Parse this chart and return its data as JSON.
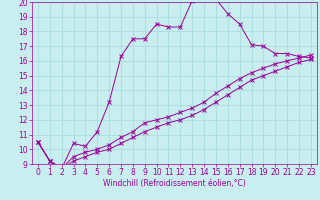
{
  "xlabel": "Windchill (Refroidissement éolien,°C)",
  "ylabel": "",
  "background_color": "#c8eef0",
  "grid_color": "#aadddd",
  "line_color": "#990099",
  "xlim": [
    -0.5,
    23.5
  ],
  "ylim": [
    9,
    20
  ],
  "xticks": [
    0,
    1,
    2,
    3,
    4,
    5,
    6,
    7,
    8,
    9,
    10,
    11,
    12,
    13,
    14,
    15,
    16,
    17,
    18,
    19,
    20,
    21,
    22,
    23
  ],
  "yticks": [
    9,
    10,
    11,
    12,
    13,
    14,
    15,
    16,
    17,
    18,
    19,
    20
  ],
  "curve1_x": [
    0,
    1,
    2,
    3,
    4,
    5,
    6,
    7,
    8,
    9,
    10,
    11,
    12,
    13,
    14,
    15,
    16,
    17,
    18,
    19,
    20,
    21,
    22,
    23
  ],
  "curve1_y": [
    10.5,
    9.2,
    8.7,
    10.4,
    10.2,
    11.2,
    13.2,
    16.3,
    17.5,
    17.5,
    18.5,
    18.3,
    18.3,
    20.1,
    20.2,
    20.2,
    19.2,
    18.5,
    17.1,
    17.0,
    16.5,
    16.5,
    16.3,
    16.2
  ],
  "curve2_x": [
    0,
    1,
    2,
    3,
    4,
    5,
    6,
    7,
    8,
    9,
    10,
    11,
    12,
    13,
    14,
    15,
    16,
    17,
    18,
    19,
    20,
    21,
    22,
    23
  ],
  "curve2_y": [
    10.5,
    9.2,
    8.7,
    9.5,
    9.8,
    10.0,
    10.3,
    10.8,
    11.2,
    11.8,
    12.0,
    12.2,
    12.5,
    12.8,
    13.2,
    13.8,
    14.3,
    14.8,
    15.2,
    15.5,
    15.8,
    16.0,
    16.2,
    16.4
  ],
  "curve3_x": [
    0,
    1,
    2,
    3,
    4,
    5,
    6,
    7,
    8,
    9,
    10,
    11,
    12,
    13,
    14,
    15,
    16,
    17,
    18,
    19,
    20,
    21,
    22,
    23
  ],
  "curve3_y": [
    10.5,
    9.2,
    8.7,
    9.2,
    9.5,
    9.8,
    10.0,
    10.4,
    10.8,
    11.2,
    11.5,
    11.8,
    12.0,
    12.3,
    12.7,
    13.2,
    13.7,
    14.2,
    14.7,
    15.0,
    15.3,
    15.6,
    15.9,
    16.1
  ],
  "tick_fontsize": 5.5,
  "xlabel_fontsize": 5.5
}
